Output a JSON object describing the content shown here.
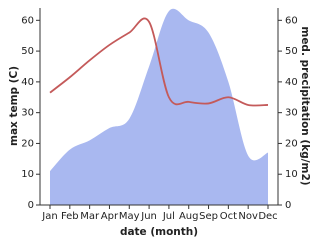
{
  "chart_data": {
    "type": "line",
    "categories": [
      "Jan",
      "Feb",
      "Mar",
      "Apr",
      "May",
      "Jun",
      "Jul",
      "Aug",
      "Sep",
      "Oct",
      "Nov",
      "Dec"
    ],
    "xlabel": "date (month)",
    "ylabel": "max temp (C)",
    "y2label": "med. precipitation (kg/m2)",
    "ylim": [
      0,
      64
    ],
    "yticks": [
      0,
      10,
      20,
      30,
      40,
      50,
      60
    ],
    "y2lim": [
      0,
      64
    ],
    "y2ticks": [
      0,
      10,
      20,
      30,
      40,
      50,
      60
    ],
    "series": [
      {
        "name": "max temp",
        "color": "#c45a5a",
        "style": "line",
        "values": [
          36.5,
          41.5,
          47,
          52,
          56,
          59.5,
          35,
          33.5,
          33,
          35,
          32.5,
          32.5
        ]
      },
      {
        "name": "med. precipitation",
        "color": "#a9b8f0",
        "style": "area",
        "axis": "y2",
        "values": [
          11,
          18,
          21,
          25,
          28,
          45,
          63,
          60,
          56,
          40,
          16,
          17
        ]
      }
    ]
  }
}
